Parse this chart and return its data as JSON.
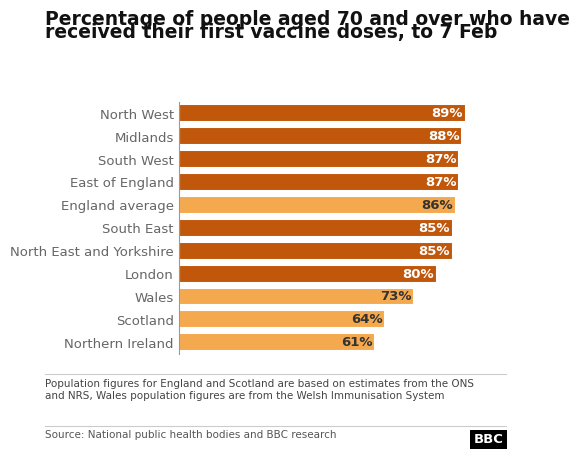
{
  "title_line1": "Percentage of people aged 70 and over who have",
  "title_line2": "received their first vaccine doses, to 7 Feb",
  "categories": [
    "North West",
    "Midlands",
    "South West",
    "East of England",
    "England average",
    "South East",
    "North East and Yorkshire",
    "London",
    "Wales",
    "Scotland",
    "Northern Ireland"
  ],
  "values": [
    89,
    88,
    87,
    87,
    86,
    85,
    85,
    80,
    73,
    64,
    61
  ],
  "bar_colors": [
    "#c0570a",
    "#c0570a",
    "#c0570a",
    "#c0570a",
    "#f5a94e",
    "#c0570a",
    "#c0570a",
    "#c0570a",
    "#f5a94e",
    "#f5a94e",
    "#f5a94e"
  ],
  "label_colors": [
    "white",
    "white",
    "white",
    "white",
    "#333333",
    "white",
    "white",
    "white",
    "#333333",
    "#333333",
    "#333333"
  ],
  "xlim": [
    0,
    100
  ],
  "footnote": "Population figures for England and Scotland are based on estimates from the ONS\nand NRS, Wales population figures are from the Welsh Immunisation System",
  "source": "Source: National public health bodies and BBC research",
  "background_color": "#ffffff",
  "title_fontsize": 13.5,
  "tick_fontsize": 9.5,
  "bar_label_fontsize": 9.5
}
